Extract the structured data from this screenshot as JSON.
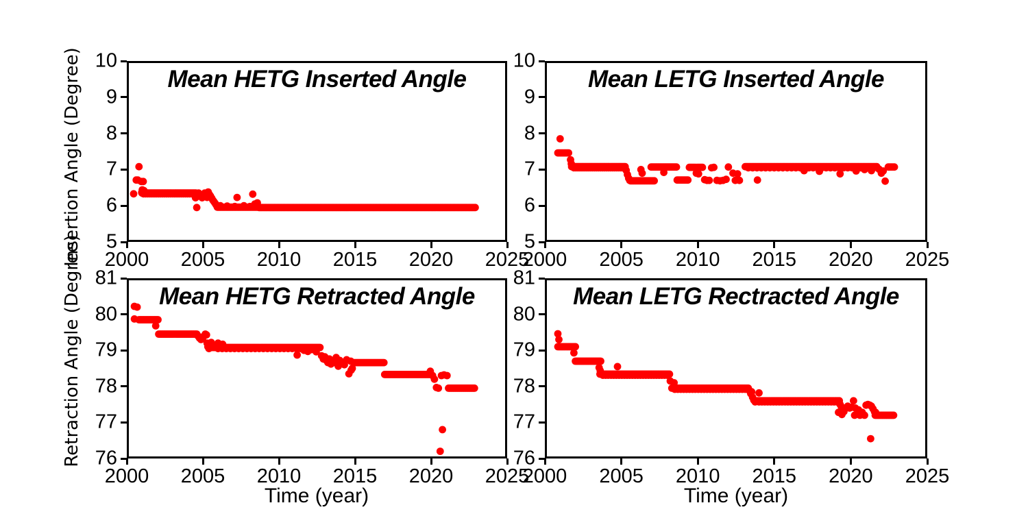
{
  "figure": {
    "background": "#ffffff",
    "spine_color": "#000000",
    "marker_color": "#ff0000",
    "text_color": "#000000"
  },
  "chart_data": [
    {
      "id": "hetg-inserted",
      "type": "scatter",
      "title": "Mean HETG Inserted Angle",
      "xlabel": "",
      "ylabel": "Insertion Angle (Degree)",
      "xlim": [
        2000,
        2025
      ],
      "ylim": [
        5,
        10
      ],
      "xticks": [
        2000,
        2005,
        2010,
        2015,
        2020,
        2025
      ],
      "yticks": [
        5,
        6,
        7,
        8,
        9,
        10
      ],
      "grid": false,
      "legend": "none",
      "marker_color": "#ff0000",
      "bands": [
        {
          "x0": 2001.0,
          "x1": 2004.55,
          "y": 6.35,
          "n": 60
        },
        {
          "x0": 2001.1,
          "x1": 2004.4,
          "y": 6.33,
          "n": 25
        },
        {
          "x0": 2005.95,
          "x1": 2008.65,
          "y": 5.96,
          "n": 45
        },
        {
          "x0": 2008.7,
          "x1": 2022.9,
          "y": 5.95,
          "n": 170
        }
      ],
      "points": [
        [
          2000.45,
          6.33
        ],
        [
          2000.62,
          6.71
        ],
        [
          2000.72,
          6.71
        ],
        [
          2000.8,
          7.08
        ],
        [
          2000.95,
          6.67
        ],
        [
          2001.08,
          6.67
        ],
        [
          2000.98,
          6.37
        ],
        [
          2001.02,
          6.44
        ],
        [
          2001.12,
          6.42
        ],
        [
          2001.2,
          6.38
        ],
        [
          2004.45,
          6.31
        ],
        [
          2004.52,
          6.22
        ],
        [
          2004.6,
          5.95
        ],
        [
          2004.72,
          6.35
        ],
        [
          2004.82,
          6.28
        ],
        [
          2004.95,
          6.22
        ],
        [
          2005.05,
          6.3
        ],
        [
          2005.12,
          6.35
        ],
        [
          2005.2,
          6.33
        ],
        [
          2005.28,
          6.23
        ],
        [
          2005.35,
          6.38
        ],
        [
          2005.42,
          6.32
        ],
        [
          2005.5,
          6.27
        ],
        [
          2005.58,
          6.21
        ],
        [
          2005.65,
          6.16
        ],
        [
          2005.72,
          6.12
        ],
        [
          2005.8,
          6.07
        ],
        [
          2005.88,
          6.02
        ],
        [
          2005.95,
          5.99
        ],
        [
          2006.15,
          6.0
        ],
        [
          2006.6,
          5.99
        ],
        [
          2007.1,
          5.98
        ],
        [
          2007.7,
          6.0
        ],
        [
          2008.1,
          5.98
        ],
        [
          2007.25,
          6.23
        ],
        [
          2008.28,
          6.32
        ],
        [
          2008.42,
          6.05
        ],
        [
          2008.58,
          6.08
        ]
      ]
    },
    {
      "id": "letg-inserted",
      "type": "scatter",
      "title": "Mean LETG Inserted Angle",
      "xlabel": "",
      "ylabel": "",
      "xlim": [
        2000,
        2025
      ],
      "ylim": [
        5,
        10
      ],
      "xticks": [
        2000,
        2005,
        2010,
        2015,
        2020,
        2025
      ],
      "yticks": [
        5,
        6,
        7,
        8,
        9,
        10
      ],
      "grid": false,
      "legend": "none",
      "marker_color": "#ff0000",
      "bands": [
        {
          "x0": 2000.85,
          "x1": 2001.55,
          "y": 7.46,
          "n": 10
        },
        {
          "x0": 2001.75,
          "x1": 2005.25,
          "y": 7.08,
          "n": 55
        },
        {
          "x0": 2001.9,
          "x1": 2005.1,
          "y": 7.05,
          "n": 25
        },
        {
          "x0": 2005.6,
          "x1": 2007.15,
          "y": 6.69,
          "n": 22
        },
        {
          "x0": 2006.95,
          "x1": 2008.6,
          "y": 7.07,
          "n": 24
        },
        {
          "x0": 2008.65,
          "x1": 2009.35,
          "y": 6.71,
          "n": 10
        },
        {
          "x0": 2009.45,
          "x1": 2010.3,
          "y": 7.06,
          "n": 11
        },
        {
          "x0": 2013.1,
          "x1": 2021.7,
          "y": 7.08,
          "n": 110
        },
        {
          "x0": 2013.3,
          "x1": 2021.5,
          "y": 7.05,
          "n": 30
        },
        {
          "x0": 2022.45,
          "x1": 2022.85,
          "y": 7.07,
          "n": 6
        }
      ],
      "points": [
        [
          2001.0,
          7.85
        ],
        [
          2001.68,
          7.27
        ],
        [
          2001.73,
          7.16
        ],
        [
          2005.32,
          6.98
        ],
        [
          2005.4,
          6.86
        ],
        [
          2005.48,
          6.76
        ],
        [
          2005.55,
          6.7
        ],
        [
          2006.28,
          7.0
        ],
        [
          2006.36,
          6.9
        ],
        [
          2007.78,
          6.92
        ],
        [
          2009.9,
          6.9
        ],
        [
          2010.05,
          6.88
        ],
        [
          2010.45,
          6.72
        ],
        [
          2010.6,
          6.7
        ],
        [
          2010.75,
          6.7
        ],
        [
          2010.9,
          7.05
        ],
        [
          2011.05,
          7.06
        ],
        [
          2011.25,
          6.7
        ],
        [
          2011.45,
          6.69
        ],
        [
          2011.65,
          6.7
        ],
        [
          2011.85,
          6.73
        ],
        [
          2012.0,
          7.07
        ],
        [
          2012.3,
          6.9
        ],
        [
          2012.45,
          6.7
        ],
        [
          2012.6,
          6.88
        ],
        [
          2012.72,
          6.7
        ],
        [
          2013.9,
          6.71
        ],
        [
          2016.95,
          6.97
        ],
        [
          2017.95,
          6.95
        ],
        [
          2019.3,
          6.88
        ],
        [
          2020.35,
          6.96
        ],
        [
          2020.9,
          7.0
        ],
        [
          2021.35,
          6.97
        ],
        [
          2021.85,
          7.01
        ],
        [
          2022.0,
          6.9
        ],
        [
          2022.12,
          6.96
        ],
        [
          2022.25,
          6.68
        ]
      ]
    },
    {
      "id": "hetg-retracted",
      "type": "scatter",
      "title": "Mean HETG Retracted Angle",
      "xlabel": "Time (year)",
      "ylabel": "Retraction Angle (Degree)",
      "xlim": [
        2000,
        2025
      ],
      "ylim": [
        76,
        81
      ],
      "xticks": [
        2000,
        2005,
        2010,
        2015,
        2020,
        2025
      ],
      "yticks": [
        76,
        77,
        78,
        79,
        80,
        81
      ],
      "grid": false,
      "legend": "none",
      "marker_color": "#ff0000",
      "bands": [
        {
          "x0": 2000.8,
          "x1": 2002.05,
          "y": 79.85,
          "n": 18
        },
        {
          "x0": 2002.1,
          "x1": 2004.6,
          "y": 79.45,
          "n": 38
        },
        {
          "x0": 2005.5,
          "x1": 2012.7,
          "y": 79.08,
          "n": 95
        },
        {
          "x0": 2006.0,
          "x1": 2012.5,
          "y": 79.05,
          "n": 25
        },
        {
          "x0": 2014.9,
          "x1": 2016.9,
          "y": 78.66,
          "n": 30
        },
        {
          "x0": 2016.95,
          "x1": 2019.9,
          "y": 78.33,
          "n": 44
        },
        {
          "x0": 2021.15,
          "x1": 2022.85,
          "y": 77.95,
          "n": 26
        }
      ],
      "points": [
        [
          2000.5,
          80.22
        ],
        [
          2000.68,
          80.2
        ],
        [
          2000.5,
          79.87
        ],
        [
          2001.9,
          79.68
        ],
        [
          2004.68,
          79.4
        ],
        [
          2004.78,
          79.34
        ],
        [
          2004.88,
          79.3
        ],
        [
          2004.98,
          79.33
        ],
        [
          2005.08,
          79.4
        ],
        [
          2005.16,
          79.45
        ],
        [
          2005.24,
          79.43
        ],
        [
          2005.28,
          79.2
        ],
        [
          2005.33,
          79.1
        ],
        [
          2005.4,
          79.05
        ],
        [
          2005.48,
          79.15
        ],
        [
          2005.55,
          79.22
        ],
        [
          2006.0,
          79.2
        ],
        [
          2006.3,
          79.17
        ],
        [
          2011.2,
          78.87
        ],
        [
          2011.65,
          79.0
        ],
        [
          2011.9,
          78.97
        ],
        [
          2012.15,
          79.02
        ],
        [
          2012.45,
          78.96
        ],
        [
          2012.8,
          78.85
        ],
        [
          2012.92,
          78.76
        ],
        [
          2013.02,
          78.82
        ],
        [
          2013.12,
          78.72
        ],
        [
          2013.22,
          78.66
        ],
        [
          2013.32,
          78.76
        ],
        [
          2013.42,
          78.62
        ],
        [
          2013.52,
          78.7
        ],
        [
          2013.62,
          78.66
        ],
        [
          2013.76,
          78.8
        ],
        [
          2013.9,
          78.56
        ],
        [
          2014.0,
          78.72
        ],
        [
          2014.12,
          78.66
        ],
        [
          2014.3,
          78.6
        ],
        [
          2014.45,
          78.74
        ],
        [
          2014.6,
          78.35
        ],
        [
          2014.72,
          78.7
        ],
        [
          2014.82,
          78.5
        ],
        [
          2014.75,
          78.45
        ],
        [
          2019.95,
          78.42
        ],
        [
          2020.1,
          78.3
        ],
        [
          2020.22,
          78.2
        ],
        [
          2020.35,
          77.97
        ],
        [
          2020.48,
          77.95
        ],
        [
          2020.68,
          78.3
        ],
        [
          2020.85,
          78.32
        ],
        [
          2021.05,
          78.3
        ],
        [
          2020.6,
          76.2
        ],
        [
          2020.75,
          76.8
        ]
      ]
    },
    {
      "id": "letg-retracted",
      "type": "scatter",
      "title": "Mean LETG Rectracted Angle",
      "xlabel": "Time (year)",
      "ylabel": "",
      "xlim": [
        2000,
        2025
      ],
      "ylim": [
        76,
        81
      ],
      "xticks": [
        2000,
        2005,
        2010,
        2015,
        2020,
        2025
      ],
      "yticks": [
        76,
        77,
        78,
        79,
        80,
        81
      ],
      "grid": false,
      "legend": "none",
      "marker_color": "#ff0000",
      "bands": [
        {
          "x0": 2000.85,
          "x1": 2002.0,
          "y": 79.1,
          "n": 16
        },
        {
          "x0": 2002.0,
          "x1": 2003.65,
          "y": 78.7,
          "n": 24
        },
        {
          "x0": 2003.6,
          "x1": 2008.15,
          "y": 78.34,
          "n": 62
        },
        {
          "x0": 2003.8,
          "x1": 2008.0,
          "y": 78.31,
          "n": 25
        },
        {
          "x0": 2008.3,
          "x1": 2013.3,
          "y": 77.95,
          "n": 68
        },
        {
          "x0": 2008.5,
          "x1": 2013.1,
          "y": 77.92,
          "n": 25
        },
        {
          "x0": 2013.85,
          "x1": 2019.25,
          "y": 77.6,
          "n": 74
        },
        {
          "x0": 2014.0,
          "x1": 2019.1,
          "y": 77.57,
          "n": 28
        },
        {
          "x0": 2021.6,
          "x1": 2022.8,
          "y": 77.2,
          "n": 18
        }
      ],
      "points": [
        [
          2000.85,
          79.46
        ],
        [
          2000.92,
          79.3
        ],
        [
          2001.9,
          78.93
        ],
        [
          2003.55,
          78.52
        ],
        [
          2003.62,
          78.44
        ],
        [
          2004.75,
          78.55
        ],
        [
          2008.2,
          78.15
        ],
        [
          2008.45,
          78.1
        ],
        [
          2013.38,
          77.88
        ],
        [
          2013.46,
          77.8
        ],
        [
          2013.52,
          77.85
        ],
        [
          2013.58,
          77.7
        ],
        [
          2013.66,
          77.62
        ],
        [
          2013.75,
          77.57
        ],
        [
          2014.0,
          77.82
        ],
        [
          2019.3,
          77.5
        ],
        [
          2019.38,
          77.44
        ],
        [
          2019.2,
          77.28
        ],
        [
          2019.42,
          77.22
        ],
        [
          2019.55,
          77.3
        ],
        [
          2019.8,
          77.45
        ],
        [
          2019.92,
          77.4
        ],
        [
          2020.05,
          77.42
        ],
        [
          2020.18,
          77.6
        ],
        [
          2020.3,
          77.4
        ],
        [
          2020.25,
          77.2
        ],
        [
          2020.5,
          77.35
        ],
        [
          2020.6,
          77.2
        ],
        [
          2020.75,
          77.28
        ],
        [
          2020.9,
          77.2
        ],
        [
          2021.0,
          77.48
        ],
        [
          2021.12,
          77.5
        ],
        [
          2021.25,
          77.48
        ],
        [
          2021.35,
          77.45
        ],
        [
          2021.45,
          77.38
        ],
        [
          2021.55,
          77.3
        ],
        [
          2021.62,
          77.28
        ],
        [
          2021.3,
          76.55
        ]
      ]
    }
  ]
}
